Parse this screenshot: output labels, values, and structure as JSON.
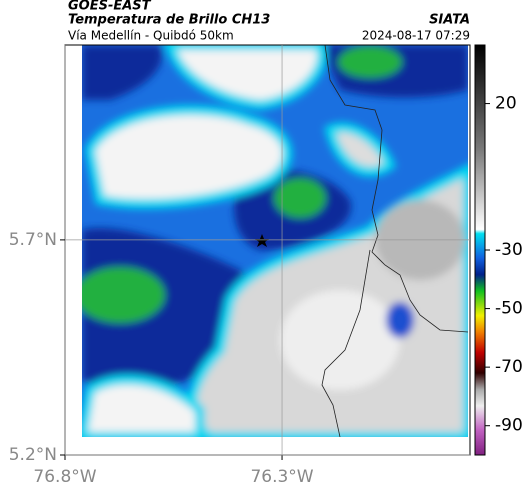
{
  "header": {
    "satellite": "GOES-EAST",
    "title": "Temperatura de Brillo CH13",
    "source": "SIATA",
    "subtitle": "Vía Medellín - Quibdó 50km",
    "timestamp": "2024-08-17 07:29"
  },
  "map": {
    "xlim": [
      -76.8,
      -75.867
    ],
    "ylim": [
      5.2,
      6.153
    ],
    "xticks": [
      {
        "value": -76.8,
        "label": "76.8°W"
      },
      {
        "value": -76.3,
        "label": "76.3°W"
      }
    ],
    "yticks": [
      {
        "value": 5.2,
        "label": "5.2°N"
      },
      {
        "value": 5.7,
        "label": "5.7°N"
      }
    ],
    "grid": true
  },
  "colorbar": {
    "clim": [
      -100,
      40
    ],
    "ticks": [
      20,
      -30,
      -50,
      -70,
      -90
    ]
  }
}
